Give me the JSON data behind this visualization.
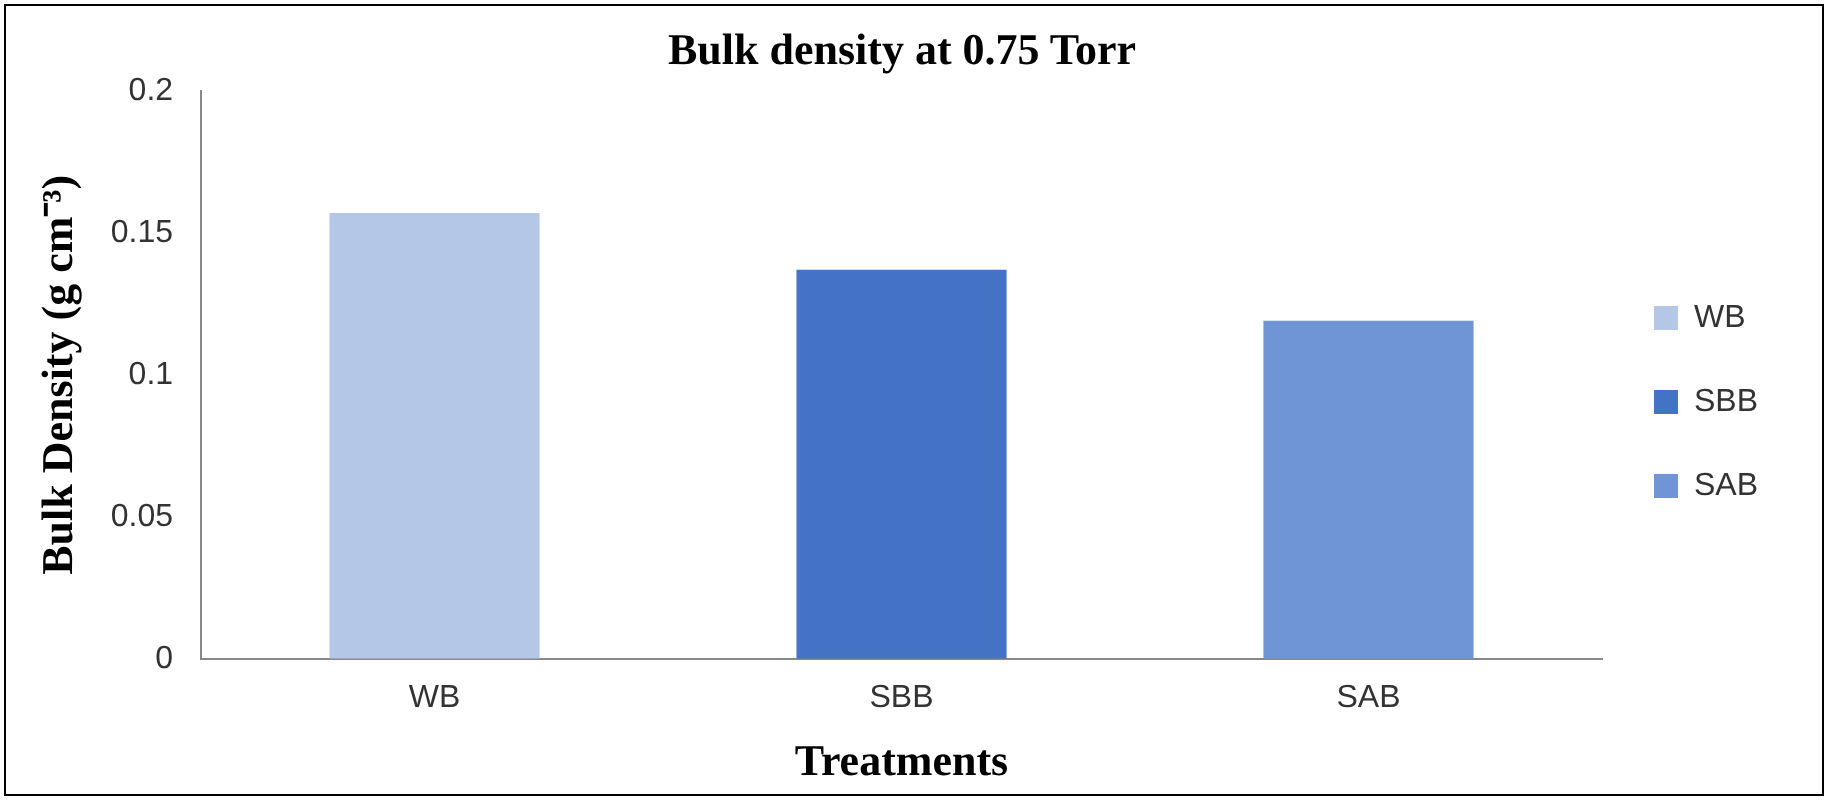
{
  "chart_data": {
    "type": "bar",
    "title": "Bulk density at 0.75 Torr",
    "xlabel": "Treatments",
    "ylabel": "Bulk Density (g cm⁻³)",
    "categories": [
      "WB",
      "SBB",
      "SAB"
    ],
    "series": [
      {
        "name": "WB",
        "color": "#b4c7e7",
        "values": [
          0.157,
          null,
          null
        ]
      },
      {
        "name": "SBB",
        "color": "#4472c4",
        "values": [
          null,
          0.137,
          null
        ]
      },
      {
        "name": "SAB",
        "color": "#6f95d6",
        "values": [
          null,
          null,
          0.119
        ]
      }
    ],
    "ylim": [
      0,
      0.2
    ],
    "yticks": [
      0,
      0.05,
      0.1,
      0.15,
      0.2
    ],
    "grid": false,
    "legend": "right"
  }
}
